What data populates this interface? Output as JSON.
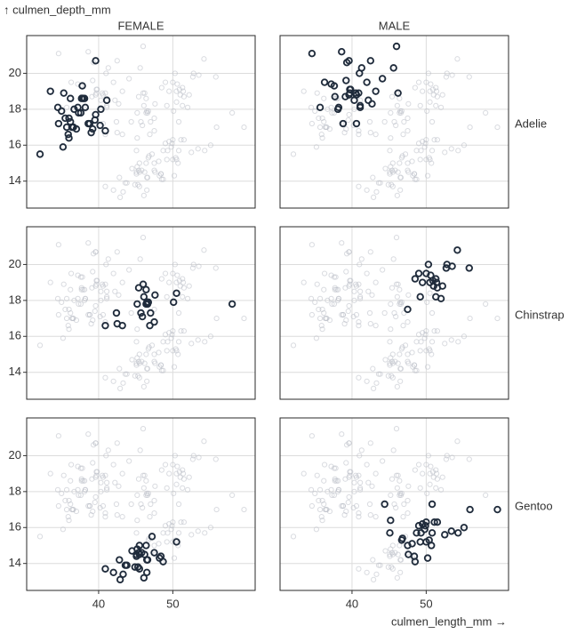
{
  "chart_data": {
    "type": "faceted-scatter",
    "y_label": "↑ culmen_depth_mm",
    "x_label": "culmen_length_mm →",
    "columns": [
      "FEMALE",
      "MALE"
    ],
    "color": "#1f2b3b",
    "background_color": "#b9bec6",
    "grid": true,
    "xlim": [
      30.3,
      61.1
    ],
    "ylim": [
      12.5,
      22.1
    ],
    "xticks": [
      40,
      50
    ],
    "yticks": [
      14,
      16,
      18,
      20
    ],
    "rows": [
      {
        "label": "Adelie",
        "cells": [
          {
            "x": [
              34.6,
              36.7,
              35.9,
              38.8,
              37.2,
              39.5,
              36.5,
              40.3,
              36.2,
              37.0,
              35.7,
              39.6,
              38.2,
              35.3,
              37.7,
              37.6,
              36.0,
              39.0,
              37.3,
              36.4,
              35.2,
              36.0,
              37.8,
              36.2,
              35.5,
              39.6,
              40.2,
              40.9,
              38.1,
              36.6,
              32.1,
              37.9,
              34.5,
              38.6,
              39.2,
              33.5,
              41.1,
              35.0
            ],
            "y": [
              17.2,
              18.0,
              16.6,
              17.2,
              18.1,
              17.4,
              17.0,
              18.0,
              17.3,
              16.9,
              17.0,
              17.7,
              18.1,
              18.9,
              18.6,
              17.8,
              17.5,
              16.7,
              17.8,
              17.0,
              15.9,
              16.4,
              19.3,
              18.6,
              17.5,
              20.7,
              17.1,
              16.8,
              18.6,
              17.0,
              15.5,
              18.6,
              18.1,
              17.2,
              16.9,
              19.0,
              18.5,
              17.9
            ]
          },
          {
            "x": [
              39.1,
              39.3,
              39.2,
              38.6,
              34.6,
              42.5,
              46.0,
              37.7,
              38.2,
              38.8,
              40.6,
              41.1,
              39.7,
              40.3,
              39.6,
              41.3,
              41.1,
              42.2,
              37.6,
              39.7,
              40.6,
              40.5,
              37.2,
              39.8,
              40.9,
              45.6,
              42.7,
              38.1,
              43.2,
              41.0,
              44.1,
              39.6,
              46.2,
              36.3,
              35.7,
              42.0
            ],
            "y": [
              18.7,
              20.6,
              19.6,
              21.2,
              21.1,
              20.7,
              21.5,
              18.7,
              18.1,
              17.2,
              18.8,
              18.2,
              18.9,
              18.5,
              20.7,
              20.3,
              18.1,
              18.5,
              19.3,
              19.1,
              17.2,
              18.9,
              19.4,
              19.1,
              18.9,
              20.3,
              18.3,
              18.0,
              19.0,
              20.0,
              19.7,
              18.8,
              18.9,
              19.5,
              18.1,
              19.5
            ]
          }
        ]
      },
      {
        "label": "Chinstrap",
        "cells": [
          {
            "x": [
              46.5,
              45.4,
              45.2,
              46.1,
              46.0,
              46.6,
              47.0,
              45.9,
              58.0,
              46.4,
              42.4,
              43.2,
              46.7,
              50.5,
              46.4,
              40.9,
              42.5,
              47.5,
              47.6,
              46.9,
              50.1,
              45.7
            ],
            "y": [
              17.9,
              18.7,
              17.8,
              18.2,
              18.9,
              17.8,
              17.3,
              17.1,
              17.8,
              18.6,
              17.3,
              16.6,
              17.9,
              18.4,
              17.8,
              16.6,
              16.7,
              16.8,
              18.3,
              16.6,
              17.9,
              17.3
            ]
          },
          {
            "x": [
              50.0,
              51.3,
              52.7,
              51.3,
              52.0,
              50.5,
              50.3,
              49.2,
              48.5,
              50.6,
              52.8,
              54.2,
              51.0,
              49.5,
              51.4,
              55.8,
              52.2,
              53.5,
              49.0,
              50.9,
              51.5,
              47.5
            ],
            "y": [
              19.5,
              19.2,
              19.8,
              18.2,
              18.1,
              19.0,
              20.0,
              18.2,
              19.2,
              19.4,
              20.0,
              20.8,
              18.8,
              19.0,
              19.0,
              19.8,
              18.8,
              19.9,
              19.5,
              19.1,
              18.7,
              17.5
            ]
          }
        ]
      },
      {
        "label": "Gentoo",
        "cells": [
          {
            "x": [
              46.1,
              48.7,
              46.5,
              45.4,
              43.3,
              40.9,
              45.5,
              45.8,
              42.0,
              46.2,
              45.1,
              46.5,
              42.9,
              48.2,
              42.8,
              45.1,
              45.3,
              43.6,
              45.5,
              44.9,
              46.6,
              45.2,
              43.8,
              48.4,
              46.4,
              47.5,
              47.2,
              45.5,
              44.5,
              50.5
            ],
            "y": [
              13.2,
              14.1,
              13.5,
              14.6,
              13.4,
              13.7,
              13.7,
              14.6,
              13.5,
              14.5,
              14.5,
              14.2,
              13.1,
              14.3,
              14.2,
              14.4,
              13.8,
              13.9,
              14.5,
              13.8,
              14.2,
              14.8,
              13.9,
              14.4,
              15.0,
              14.6,
              15.5,
              15.0,
              14.7,
              15.2
            ]
          },
          {
            "x": [
              50.0,
              50.0,
              47.6,
              46.7,
              46.8,
              49.0,
              48.4,
              49.3,
              49.2,
              48.7,
              50.2,
              45.2,
              47.5,
              48.1,
              50.8,
              44.4,
              49.9,
              51.1,
              52.5,
              50.4,
              54.3,
              49.8,
              51.5,
              55.9,
              59.6,
              48.5,
              50.7,
              45.1,
              49.5,
              53.4,
              55.1,
              50.8
            ],
            "y": [
              16.3,
              15.2,
              14.5,
              15.3,
              15.4,
              16.1,
              14.4,
              15.7,
              15.2,
              15.7,
              14.3,
              16.4,
              15.0,
              15.1,
              15.7,
              17.3,
              16.1,
              16.3,
              15.6,
              15.3,
              15.7,
              15.9,
              16.3,
              17.0,
              17.0,
              14.1,
              15.0,
              15.7,
              16.2,
              15.8,
              16.0,
              17.3
            ]
          }
        ]
      }
    ]
  }
}
